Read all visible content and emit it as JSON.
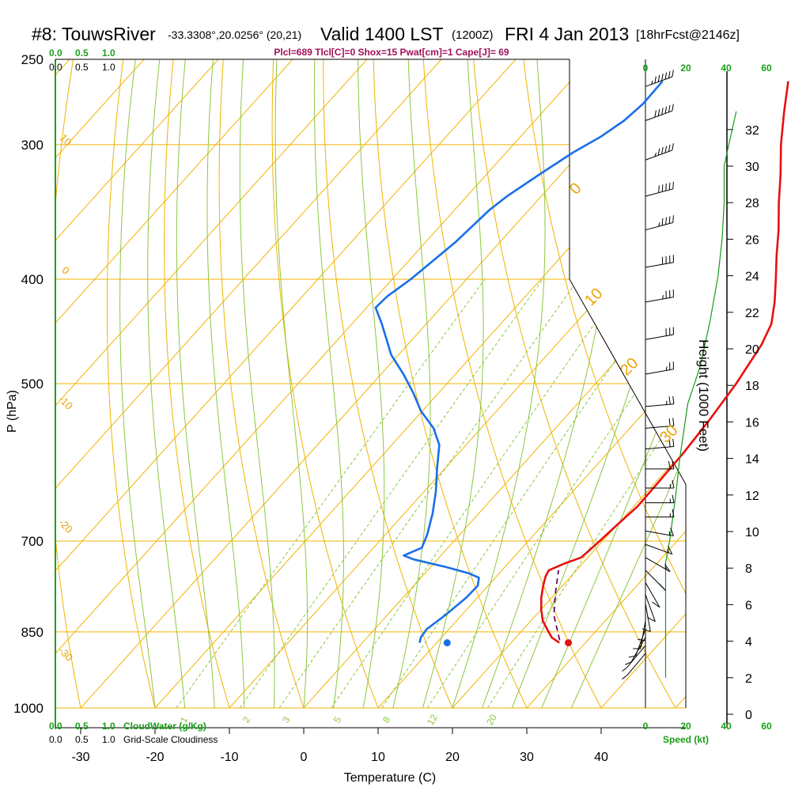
{
  "header": {
    "station": "#8: TouwsRiver",
    "coords": "-33.3308°,20.0256° (20,21)",
    "valid": "Valid 1400 LST",
    "zulu": "(1200Z)",
    "date": "FRI 4 Jan 2013",
    "forecast": "[18hrFcst@2146z]"
  },
  "indices_line": "Plcl=689 Tlcl[C]=0 Shox=15 Pwat[cm]=1 Cape[J]= 69",
  "top_scale": {
    "cloudwater_ticks": [
      "0.0",
      "0.5",
      "1.0"
    ],
    "cloudiness_ticks": [
      "0.0",
      "0.5",
      "1.0"
    ]
  },
  "bottom_scale": {
    "cloudwater_ticks": [
      "0.0",
      "0.5",
      "1.0"
    ],
    "cloudwater_label": "CloudWater (g/Kg)",
    "cloudiness_ticks": [
      "0.0",
      "0.5",
      "1.0"
    ],
    "cloudiness_label": "Grid-Scale Cloudiness"
  },
  "wind_scale": {
    "ticks": [
      "0",
      "20",
      "40",
      "60"
    ],
    "label": "Speed (kt)"
  },
  "colors": {
    "temperature": "#e81010",
    "dewpoint": "#1a6fe8",
    "parcel": "#6a0a6a",
    "isotherm": "#f0b400",
    "dry_adiabat": "#f0b400",
    "moist_adiabat": "#8cc63f",
    "mixing_ratio": "#8cc63f",
    "wind_speed": "#1a9a1a"
  },
  "chart_data": {
    "type": "skew-t",
    "xlabel": "Temperature (C)",
    "ylabel": "P (hPa)",
    "y2label": "Height (1000 Feet)",
    "x_ticks": [
      -30,
      -20,
      -10,
      0,
      10,
      20,
      30,
      40
    ],
    "p_ticks": [
      250,
      300,
      400,
      500,
      700,
      850,
      1000
    ],
    "height_ticks": [
      0,
      2,
      4,
      6,
      8,
      10,
      12,
      14,
      16,
      18,
      20,
      22,
      24,
      26,
      28,
      30,
      32
    ],
    "isotherm_labels": [
      {
        "value": "10",
        "size": "small"
      },
      {
        "value": "0",
        "size": "small"
      },
      {
        "value": "-10",
        "size": "small"
      },
      {
        "value": "-20",
        "size": "small"
      },
      {
        "value": "-30",
        "size": "small"
      },
      {
        "value": "0",
        "size": "large"
      },
      {
        "value": "10",
        "size": "large"
      },
      {
        "value": "20",
        "size": "large"
      },
      {
        "value": "30",
        "size": "large"
      }
    ],
    "mixing_ratio_labels": [
      "1",
      "2",
      "3",
      "5",
      "8",
      "12",
      "20"
    ],
    "temperature": [
      {
        "p": 870,
        "t": 26.5
      },
      {
        "p": 860,
        "t": 24.8
      },
      {
        "p": 845,
        "t": 23.2
      },
      {
        "p": 830,
        "t": 21.6
      },
      {
        "p": 810,
        "t": 20.0
      },
      {
        "p": 790,
        "t": 18.6
      },
      {
        "p": 770,
        "t": 17.4
      },
      {
        "p": 755,
        "t": 16.6
      },
      {
        "p": 745,
        "t": 16.3
      },
      {
        "p": 735,
        "t": 17.5
      },
      {
        "p": 725,
        "t": 19.1
      },
      {
        "p": 715,
        "t": 19.3
      },
      {
        "p": 700,
        "t": 19.6
      },
      {
        "p": 680,
        "t": 19.9
      },
      {
        "p": 650,
        "t": 20.5
      },
      {
        "p": 620,
        "t": 20.4
      },
      {
        "p": 580,
        "t": 20.2
      },
      {
        "p": 540,
        "t": 19.7
      },
      {
        "p": 500,
        "t": 18.9
      },
      {
        "p": 460,
        "t": 17.6
      },
      {
        "p": 440,
        "t": 16.4
      },
      {
        "p": 420,
        "t": 14.2
      },
      {
        "p": 400,
        "t": 11.6
      },
      {
        "p": 380,
        "t": 8.8
      },
      {
        "p": 360,
        "t": 6.0
      },
      {
        "p": 340,
        "t": 2.8
      },
      {
        "p": 320,
        "t": -0.4
      },
      {
        "p": 300,
        "t": -4.0
      },
      {
        "p": 280,
        "t": -7.5
      },
      {
        "p": 262,
        "t": -10.7
      }
    ],
    "dewpoint": [
      {
        "p": 870,
        "t": 7.7
      },
      {
        "p": 860,
        "t": 7.2
      },
      {
        "p": 845,
        "t": 7.0
      },
      {
        "p": 820,
        "t": 7.8
      },
      {
        "p": 790,
        "t": 8.5
      },
      {
        "p": 770,
        "t": 8.6
      },
      {
        "p": 757,
        "t": 7.8
      },
      {
        "p": 750,
        "t": 5.9
      },
      {
        "p": 740,
        "t": 2.1
      },
      {
        "p": 728,
        "t": -3.2
      },
      {
        "p": 722,
        "t": -5.0
      },
      {
        "p": 710,
        "t": -3.5
      },
      {
        "p": 690,
        "t": -4.4
      },
      {
        "p": 660,
        "t": -6.2
      },
      {
        "p": 630,
        "t": -8.4
      },
      {
        "p": 600,
        "t": -11.0
      },
      {
        "p": 570,
        "t": -13.6
      },
      {
        "p": 550,
        "t": -16.4
      },
      {
        "p": 530,
        "t": -20.2
      },
      {
        "p": 510,
        "t": -23.4
      },
      {
        "p": 490,
        "t": -27.0
      },
      {
        "p": 470,
        "t": -31.0
      },
      {
        "p": 440,
        "t": -36.0
      },
      {
        "p": 425,
        "t": -38.8
      },
      {
        "p": 415,
        "t": -38.6
      },
      {
        "p": 400,
        "t": -37.5
      },
      {
        "p": 370,
        "t": -36.0
      },
      {
        "p": 345,
        "t": -35.3
      },
      {
        "p": 335,
        "t": -34.6
      },
      {
        "p": 320,
        "t": -32.9
      },
      {
        "p": 305,
        "t": -31.0
      },
      {
        "p": 295,
        "t": -29.2
      },
      {
        "p": 285,
        "t": -28.0
      },
      {
        "p": 275,
        "t": -27.5
      },
      {
        "p": 262,
        "t": -27.6
      }
    ],
    "parcel": [
      {
        "p": 865,
        "t": 26.2
      },
      {
        "p": 820,
        "t": 22.4
      },
      {
        "p": 780,
        "t": 19.8
      },
      {
        "p": 745,
        "t": 17.6
      }
    ],
    "surface_temperature": {
      "p": 870,
      "t": 27.7
    },
    "surface_dewpoint": {
      "p": 870,
      "t": 11.4
    },
    "wind_barbs": [
      {
        "p": 265,
        "dir": 290,
        "spd": 65
      },
      {
        "p": 285,
        "dir": 290,
        "spd": 60
      },
      {
        "p": 310,
        "dir": 290,
        "spd": 55
      },
      {
        "p": 335,
        "dir": 285,
        "spd": 50
      },
      {
        "p": 360,
        "dir": 285,
        "spd": 45
      },
      {
        "p": 390,
        "dir": 280,
        "spd": 40
      },
      {
        "p": 420,
        "dir": 280,
        "spd": 35
      },
      {
        "p": 455,
        "dir": 280,
        "spd": 30
      },
      {
        "p": 490,
        "dir": 280,
        "spd": 25
      },
      {
        "p": 525,
        "dir": 275,
        "spd": 25
      },
      {
        "p": 550,
        "dir": 275,
        "spd": 20
      },
      {
        "p": 575,
        "dir": 275,
        "spd": 20
      },
      {
        "p": 600,
        "dir": 270,
        "spd": 20
      },
      {
        "p": 625,
        "dir": 270,
        "spd": 15
      },
      {
        "p": 645,
        "dir": 270,
        "spd": 15
      },
      {
        "p": 665,
        "dir": 270,
        "spd": 15
      },
      {
        "p": 685,
        "dir": 260,
        "spd": 15
      },
      {
        "p": 705,
        "dir": 250,
        "spd": 15
      },
      {
        "p": 725,
        "dir": 240,
        "spd": 15
      },
      {
        "p": 745,
        "dir": 225,
        "spd": 15
      },
      {
        "p": 765,
        "dir": 210,
        "spd": 10
      },
      {
        "p": 785,
        "dir": 200,
        "spd": 10
      },
      {
        "p": 800,
        "dir": 190,
        "spd": 10
      },
      {
        "p": 815,
        "dir": 180,
        "spd": 10
      },
      {
        "p": 830,
        "dir": 170,
        "spd": 10
      },
      {
        "p": 845,
        "dir": 160,
        "spd": 10
      },
      {
        "p": 860,
        "dir": 150,
        "spd": 10
      },
      {
        "p": 875,
        "dir": 140,
        "spd": 10
      },
      {
        "p": 890,
        "dir": 140,
        "spd": 10
      }
    ],
    "wind_speed_profile": [
      {
        "h": 2.0,
        "spd": 10
      },
      {
        "h": 3.3,
        "spd": 10
      },
      {
        "h": 6.0,
        "spd": 10
      },
      {
        "h": 8.3,
        "spd": 10
      },
      {
        "h": 9.5,
        "spd": 12
      },
      {
        "h": 12.0,
        "spd": 15
      },
      {
        "h": 14.0,
        "spd": 17
      },
      {
        "h": 17.0,
        "spd": 21
      },
      {
        "h": 19.0,
        "spd": 27
      },
      {
        "h": 21.5,
        "spd": 32
      },
      {
        "h": 24.0,
        "spd": 36
      },
      {
        "h": 26.0,
        "spd": 38
      },
      {
        "h": 28.0,
        "spd": 39
      },
      {
        "h": 30.0,
        "spd": 39
      },
      {
        "h": 31.0,
        "spd": 41
      },
      {
        "h": 33.0,
        "spd": 45
      }
    ],
    "xlim": [
      -35,
      50
    ],
    "ylim": [
      1000,
      250
    ],
    "skew": "45-degree isotherms",
    "grid": true
  }
}
